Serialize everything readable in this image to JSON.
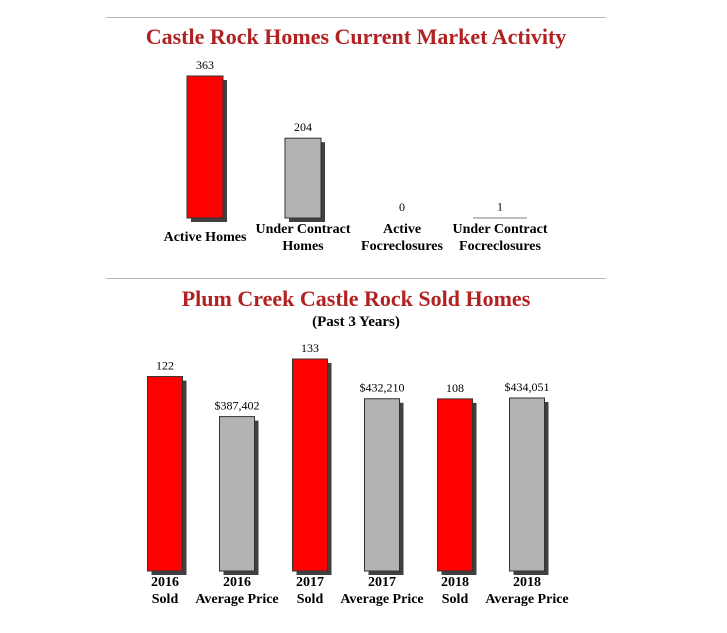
{
  "colors": {
    "title": "#b22222",
    "sold": "#ff0000",
    "price": "#b3b3b3",
    "baseline": "#808080"
  },
  "chart_data": [
    {
      "type": "bar",
      "title": "Castle Rock Homes Current Market Activity",
      "categories": [
        [
          "Active Homes"
        ],
        [
          "Under Contract",
          "Homes"
        ],
        [
          "Active",
          "Focreclosures"
        ],
        [
          "Under Contract",
          "Focreclosures"
        ]
      ],
      "values": [
        363,
        204,
        0,
        1
      ],
      "value_labels": [
        "363",
        "204",
        "0",
        "1"
      ],
      "bar_colors": [
        "red",
        "gray",
        "red",
        "gray"
      ],
      "ylim": [
        0,
        363
      ]
    },
    {
      "type": "bar",
      "title": "Plum Creek Castle Rock Sold Homes",
      "subtitle": "(Past 3 Years)",
      "categories": [
        [
          "2016",
          "Sold"
        ],
        [
          "2016",
          "Average Price"
        ],
        [
          "2017",
          "Sold"
        ],
        [
          "2017",
          "Average Price"
        ],
        [
          "2018",
          "Sold"
        ],
        [
          "2018",
          "Average Price"
        ]
      ],
      "values": [
        122,
        387402,
        133,
        432210,
        108,
        434051
      ],
      "value_labels": [
        "122",
        "$387,402",
        "133",
        "$432,210",
        "108",
        "$434,051"
      ],
      "bar_colors": [
        "red",
        "gray",
        "red",
        "gray",
        "red",
        "gray"
      ],
      "scales": {
        "sold_max": 133,
        "price_max": 434051
      }
    }
  ]
}
